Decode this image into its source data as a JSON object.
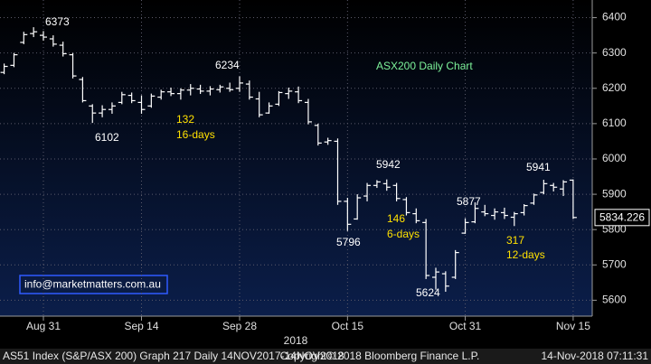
{
  "chart_data": {
    "type": "ohlc",
    "title": "ASX200 Daily Chart",
    "categories": [
      null,
      null,
      null,
      null,
      "Aug 31",
      null,
      null,
      null,
      null,
      null,
      null,
      null,
      null,
      null,
      "Sep 14",
      null,
      null,
      null,
      null,
      null,
      null,
      null,
      null,
      null,
      "Sep 28",
      null,
      null,
      null,
      null,
      null,
      null,
      null,
      null,
      null,
      null,
      "Oct 15",
      null,
      null,
      null,
      null,
      null,
      null,
      null,
      null,
      null,
      null,
      null,
      "Oct 31",
      null,
      null,
      null,
      null,
      null,
      null,
      null,
      null,
      null,
      null,
      "Nov 15"
    ],
    "x_axis_label": "2018",
    "color": "#ffffff",
    "series": [
      {
        "name": "open",
        "values": [
          6245,
          6265,
          6330,
          6355,
          6350,
          6340,
          6322,
          6295,
          6225,
          6150,
          6130,
          6140,
          6160,
          6180,
          6160,
          6150,
          6175,
          6190,
          6185,
          6195,
          6198,
          6192,
          6196,
          6200,
          6200,
          6212,
          6170,
          6130,
          6155,
          6185,
          6190,
          6160,
          6095,
          6048,
          6050,
          5880,
          5830,
          5895,
          5925,
          5930,
          5925,
          5885,
          5845,
          5820,
          5665,
          5675,
          5665,
          5790,
          5822,
          5850,
          5840,
          5848,
          5835,
          5848,
          5875,
          5905,
          5925,
          5915,
          5940
        ]
      },
      {
        "name": "high",
        "values": [
          6270,
          6300,
          6360,
          6373,
          6362,
          6350,
          6332,
          6300,
          6232,
          6155,
          6152,
          6160,
          6190,
          6188,
          6180,
          6185,
          6196,
          6202,
          6200,
          6212,
          6210,
          6206,
          6210,
          6216,
          6234,
          6222,
          6190,
          6160,
          6192,
          6202,
          6205,
          6170,
          6100,
          6060,
          6058,
          5890,
          5900,
          5932,
          5940,
          5942,
          5932,
          5892,
          5860,
          5830,
          5692,
          5682,
          5742,
          5832,
          5877,
          5870,
          5860,
          5862,
          5850,
          5872,
          5902,
          5941,
          5932,
          5940,
          5942
        ]
      },
      {
        "name": "low",
        "values": [
          6240,
          6260,
          6325,
          6345,
          6335,
          6318,
          6290,
          6228,
          6160,
          6102,
          6118,
          6128,
          6155,
          6158,
          6128,
          6145,
          6168,
          6178,
          6168,
          6180,
          6184,
          6180,
          6188,
          6190,
          6190,
          6168,
          6118,
          6128,
          6150,
          6170,
          6158,
          6098,
          6038,
          6040,
          5870,
          5796,
          5828,
          5880,
          5918,
          5910,
          5880,
          5840,
          5818,
          5660,
          5630,
          5624,
          5660,
          5788,
          5818,
          5838,
          5828,
          5830,
          5810,
          5840,
          5870,
          5900,
          5908,
          5895,
          5830
        ]
      },
      {
        "name": "close",
        "values": [
          6262,
          6295,
          6352,
          6360,
          6345,
          6325,
          6298,
          6235,
          6165,
          6130,
          6140,
          6150,
          6182,
          6165,
          6140,
          6178,
          6190,
          6185,
          6195,
          6200,
          6192,
          6198,
          6204,
          6196,
          6215,
          6175,
          6125,
          6150,
          6188,
          6192,
          6165,
          6105,
          6045,
          6052,
          5880,
          5815,
          5890,
          5925,
          5935,
          5920,
          5888,
          5848,
          5825,
          5670,
          5680,
          5640,
          5735,
          5820,
          5860,
          5845,
          5850,
          5840,
          5845,
          5868,
          5898,
          5930,
          5920,
          5935,
          5834.226
        ]
      }
    ],
    "ylim": [
      5555,
      6450
    ],
    "yticks": [
      5600,
      5700,
      5800,
      5900,
      6000,
      6100,
      6200,
      6300,
      6400
    ],
    "grid": true,
    "annotations": [
      "6373",
      "6102",
      "6234",
      "132",
      "16-days",
      "5942",
      "5796",
      "146",
      "6-days",
      "5624",
      "5877",
      "5941",
      "317",
      "12-days"
    ],
    "email": "info@marketmatters.com.au",
    "footer": {
      "left": "AS51 Index (S&P/ASX 200) Graph 217  Daily 14NOV2017-14NOV2018",
      "center": "Copyright© 2018 Bloomberg Finance L.P.",
      "right": "14-Nov-2018 07:11:31"
    }
  }
}
